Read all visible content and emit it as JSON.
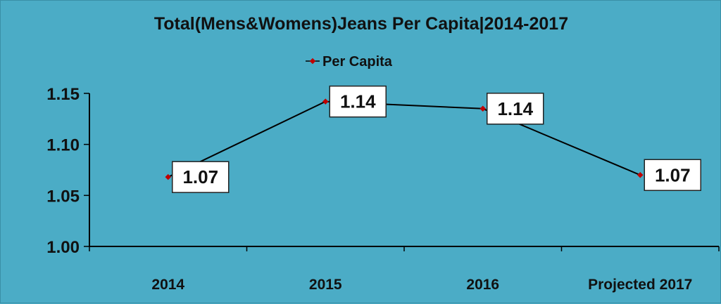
{
  "chart_data": {
    "type": "line",
    "title": "Total(Mens&Womens)Jeans Per Capita|2014-2017",
    "categories": [
      "2014",
      "2015",
      "2016",
      "Projected 2017"
    ],
    "series": [
      {
        "name": "Per Capita",
        "values": [
          1.068,
          1.142,
          1.135,
          1.07
        ],
        "labels": [
          "1.07",
          "1.14",
          "1.14",
          "1.07"
        ],
        "color": "#c00000"
      }
    ],
    "ylim": [
      1.0,
      1.15
    ],
    "yticks": [
      "1.00",
      "1.05",
      "1.10",
      "1.15"
    ],
    "legend_position": "top",
    "grid": false,
    "background_color": "#4bacc6",
    "line_color": "#000000"
  }
}
